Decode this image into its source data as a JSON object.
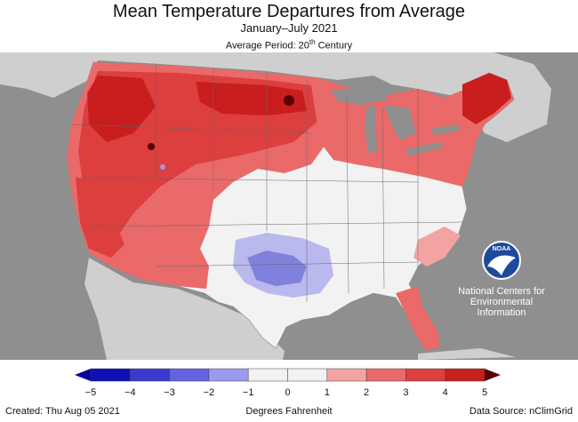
{
  "header": {
    "title": "Mean Temperature Departures from Average",
    "subtitle": "January–July 2021",
    "period_prefix": "Average Period: 20",
    "period_ordinal": "th",
    "period_suffix": " Century"
  },
  "map": {
    "region": "Contiguous United States",
    "colors": {
      "background_land": "#cfcfcf",
      "ocean": "#8f8f8f",
      "great_lakes": "#8f8f8f",
      "near_normal": "#f2f2f2",
      "warm_1": "#f4a3a3",
      "warm_2": "#ea6a6a",
      "warm_3": "#dd3e3e",
      "warm_4": "#c81e1e",
      "warm_max": "#5a0000",
      "cool_1": "#b9b9ee",
      "cool_2": "#8080dd"
    },
    "logo": {
      "lines": [
        "National Centers for",
        "Environmental",
        "Information"
      ],
      "emblem_text": "NOAA"
    }
  },
  "scale": {
    "ticks": [
      "−5",
      "−4",
      "−3",
      "−2",
      "−1",
      "0",
      "1",
      "2",
      "3",
      "4",
      "5"
    ],
    "colors": [
      "#1010b8",
      "#3a3ad0",
      "#6464e0",
      "#9a9aee",
      "#f2f2f2",
      "#f2f2f2",
      "#f4a3a3",
      "#ea6a6a",
      "#dd3e3e",
      "#c81e1e"
    ],
    "arrow_low_color": "#0000a0",
    "arrow_high_color": "#5a0000"
  },
  "footer": {
    "created": "Created: Thu Aug 05 2021",
    "units": "Degrees Fahrenheit",
    "source": "Data Source: nClimGrid"
  }
}
